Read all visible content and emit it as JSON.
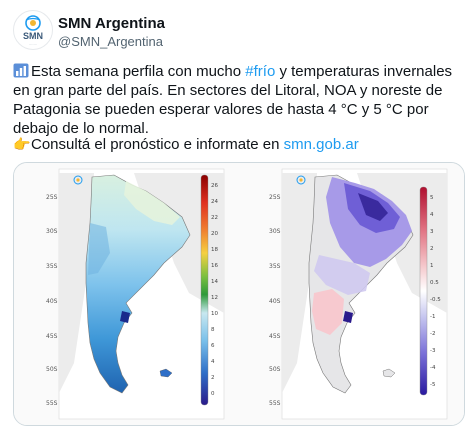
{
  "account": {
    "name": "SMN Argentina",
    "handle": "@SMN_Argentina",
    "avatar_text": "SMN"
  },
  "post": {
    "line_pre": "Esta semana perfila con mucho ",
    "hashtag": "#frío",
    "line_post": " y temperaturas invernales en gran parte del país. En sectores del Litoral, NOA y noreste de Patagonia se pueden esperar valores de hasta 4 °C y 5 °C por debajo de lo normal.",
    "cta_text": "Consultá el pronóstico e informate en ",
    "cta_link": "smn.gob.ar"
  },
  "map_left": {
    "latitudes": [
      "25S",
      "30S",
      "35S",
      "40S",
      "45S",
      "50S",
      "55S"
    ],
    "colorbar_labels": [
      "26",
      "24",
      "22",
      "20",
      "18",
      "16",
      "14",
      "12",
      "10",
      "8",
      "6",
      "4",
      "2",
      "0"
    ]
  },
  "map_right": {
    "latitudes": [
      "25S",
      "30S",
      "35S",
      "40S",
      "45S",
      "50S",
      "55S"
    ],
    "colorbar_labels": [
      "5",
      "4",
      "3",
      "2",
      "1",
      "0.5",
      "-0.5",
      "-1",
      "-2",
      "-3",
      "-4",
      "-5"
    ]
  },
  "colors": {
    "accent": "#1d9bf0",
    "text": "#0f1419",
    "muted": "#536471"
  }
}
